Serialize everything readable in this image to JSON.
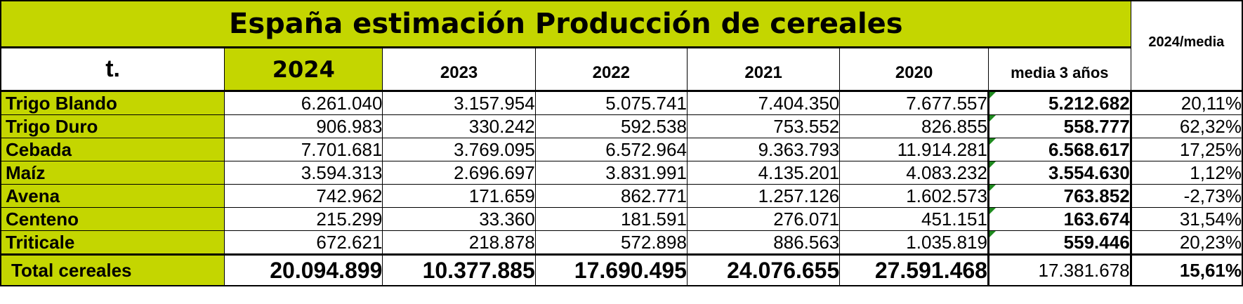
{
  "title": "España estimación Producción de cereales",
  "ratio_header": "2024/media",
  "headers": {
    "unit": "t.",
    "years": [
      "2024",
      "2023",
      "2022",
      "2021",
      "2020"
    ],
    "average": "media 3 años"
  },
  "rows": [
    {
      "label": "Trigo Blando",
      "values": [
        "6.261.040",
        "3.157.954",
        "5.075.741",
        "7.404.350",
        "7.677.557"
      ],
      "avg": "5.212.682",
      "pct": "20,11%"
    },
    {
      "label": "Trigo Duro",
      "values": [
        "906.983",
        "330.242",
        "592.538",
        "753.552",
        "826.855"
      ],
      "avg": "558.777",
      "pct": "62,32%"
    },
    {
      "label": "Cebada",
      "values": [
        "7.701.681",
        "3.769.095",
        "6.572.964",
        "9.363.793",
        "11.914.281"
      ],
      "avg": "6.568.617",
      "pct": "17,25%"
    },
    {
      "label": "Maíz",
      "values": [
        "3.594.313",
        "2.696.697",
        "3.831.991",
        "4.135.201",
        "4.083.232"
      ],
      "avg": "3.554.630",
      "pct": "1,12%"
    },
    {
      "label": "Avena",
      "values": [
        "742.962",
        "171.659",
        "862.771",
        "1.257.126",
        "1.602.573"
      ],
      "avg": "763.852",
      "pct": "-2,73%"
    },
    {
      "label": "Centeno",
      "values": [
        "215.299",
        "33.360",
        "181.591",
        "276.071",
        "451.151"
      ],
      "avg": "163.674",
      "pct": "31,54%"
    },
    {
      "label": "Triticale",
      "values": [
        "672.621",
        "218.878",
        "572.898",
        "886.563",
        "1.035.819"
      ],
      "avg": "559.446",
      "pct": "20,23%"
    }
  ],
  "total": {
    "label": "Total cereales",
    "values": [
      "20.094.899",
      "10.377.885",
      "17.690.495",
      "24.076.655",
      "27.591.468"
    ],
    "avg": "17.381.678",
    "pct": "15,61%"
  },
  "colors": {
    "accent": "#c4d600",
    "comment_marker": "#1f8a1f"
  }
}
